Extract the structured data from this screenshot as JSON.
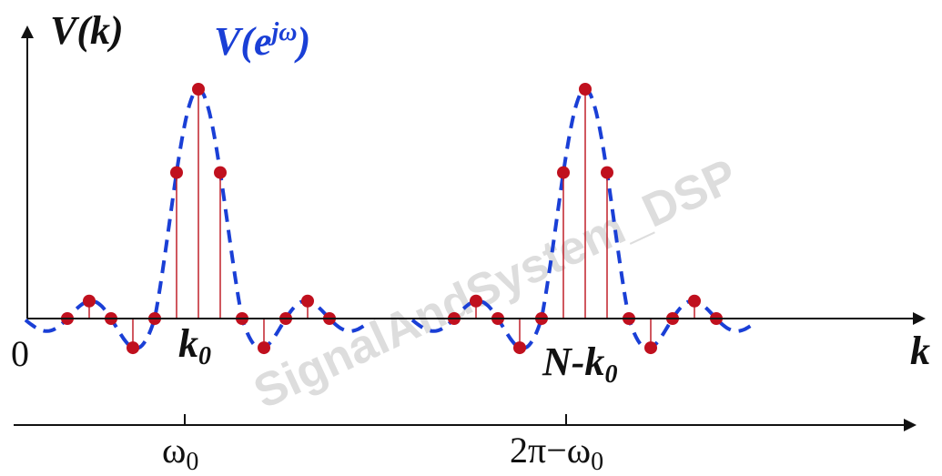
{
  "axes": {
    "y_label": {
      "base": "V",
      "arg": "(k)"
    },
    "curve_label": {
      "base": "V(e",
      "sup": "jω",
      "close": ")"
    },
    "origin": "0",
    "x_label": "k",
    "k0": {
      "base": "k",
      "sub": "0"
    },
    "nk0": {
      "base": "N-k",
      "sub": "0"
    }
  },
  "freq_axis": {
    "w0": {
      "base": "ω",
      "sub": "0"
    },
    "w1": {
      "base": "2π−ω",
      "sub": "0"
    }
  },
  "watermark": "SignalAndSystem_DSP"
}
